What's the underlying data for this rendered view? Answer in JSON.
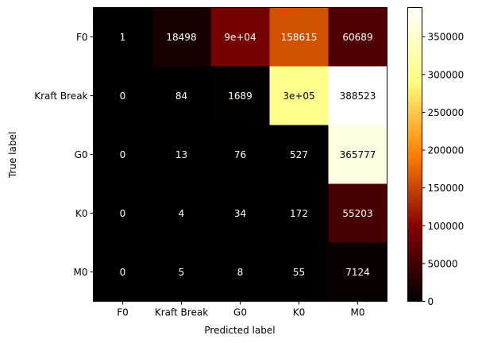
{
  "chart_data": {
    "type": "heatmap",
    "title": "",
    "xlabel": "Predicted label",
    "ylabel": "True label",
    "x_categories": [
      "F0",
      "Kraft Break",
      "G0",
      "K0",
      "M0"
    ],
    "y_categories": [
      "F0",
      "Kraft Break",
      "G0",
      "K0",
      "M0"
    ],
    "values": [
      [
        1,
        18498,
        90000,
        158615,
        60689
      ],
      [
        0,
        84,
        1689,
        300000,
        388523
      ],
      [
        0,
        13,
        76,
        527,
        365777
      ],
      [
        0,
        4,
        34,
        172,
        55203
      ],
      [
        0,
        5,
        8,
        55,
        7124
      ]
    ],
    "cell_labels": [
      [
        "1",
        "18498",
        "9e+04",
        "158615",
        "60689"
      ],
      [
        "0",
        "84",
        "1689",
        "3e+05",
        "388523"
      ],
      [
        "0",
        "13",
        "76",
        "527",
        "365777"
      ],
      [
        "0",
        "4",
        "34",
        "172",
        "55203"
      ],
      [
        "0",
        "5",
        "8",
        "55",
        "7124"
      ]
    ],
    "colormap": "afmhot",
    "colorbar": {
      "min": 0,
      "max": 388523,
      "ticks": [
        0,
        50000,
        100000,
        150000,
        200000,
        250000,
        300000,
        350000
      ],
      "tick_labels": [
        "0",
        "50000",
        "100000",
        "150000",
        "200000",
        "250000",
        "300000",
        "350000"
      ]
    },
    "grid": false,
    "legend": "none"
  }
}
